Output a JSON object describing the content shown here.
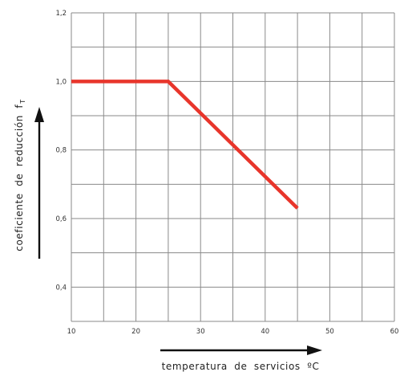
{
  "chart_data": {
    "type": "line",
    "title": "",
    "xlabel": "temperatura de servicios ºC",
    "ylabel_main": "coeficiente de reducción f",
    "ylabel_subscript": "T",
    "xlim": [
      10,
      60
    ],
    "ylim": [
      0.3,
      1.2
    ],
    "grid": true,
    "x_ticks": [
      10,
      20,
      30,
      40,
      50,
      60
    ],
    "x_tick_labels": [
      "10",
      "20",
      "30",
      "40",
      "50",
      "60"
    ],
    "y_ticks": [
      0.4,
      0.6,
      0.8,
      1.0,
      1.2
    ],
    "y_tick_labels": [
      "0,4",
      "0,6",
      "0,8",
      "1,0",
      "1,2"
    ],
    "series": [
      {
        "x": [
          10,
          25,
          45
        ],
        "y": [
          1.0,
          1.0,
          0.63
        ],
        "color": "#e8352b"
      }
    ],
    "colors": {
      "grid": "#8a8a8a",
      "line": "#e8352b",
      "arrows": "#111111"
    }
  }
}
